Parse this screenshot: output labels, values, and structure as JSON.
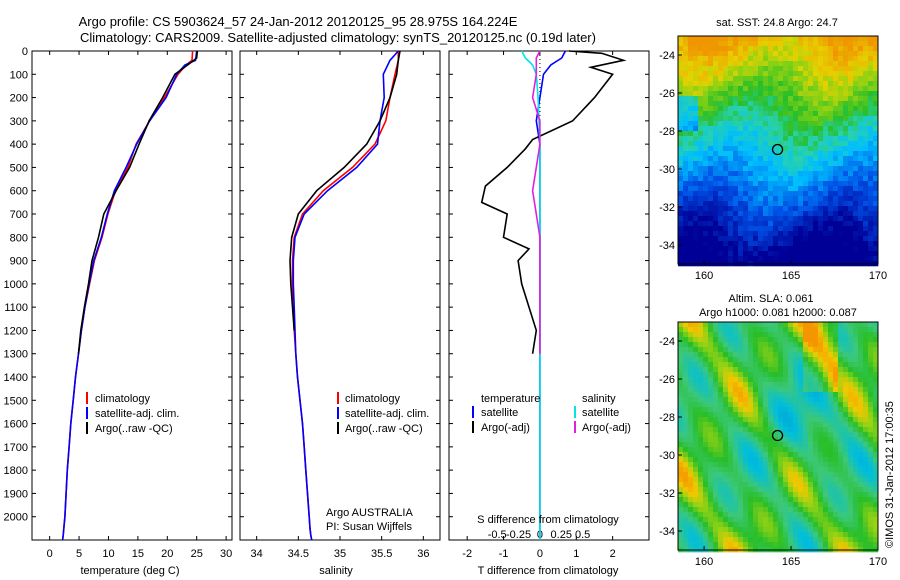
{
  "header": {
    "line1": "Argo profile: CS 5903624_57 24-Jan-2012 20120125_95 28.975S 164.224E",
    "line2": "Climatology: CARS2009. Satellite-adjusted climatology: synTS_20120125.nc (0.19d later)"
  },
  "colors": {
    "climatology": "#ff0000",
    "satellite": "#0000ff",
    "argo": "#000000",
    "satellite_s": "#00e5e5",
    "argo_s": "#e020e0"
  },
  "chart_data": [
    {
      "type": "line",
      "xlabel": "temperature (deg C)",
      "ylabel": "",
      "xlim": [
        -3,
        31
      ],
      "ylim": [
        2100,
        0
      ],
      "x_ticks": [
        0,
        5,
        10,
        15,
        20,
        25,
        30
      ],
      "y_ticks": [
        0,
        100,
        200,
        300,
        400,
        500,
        600,
        700,
        800,
        900,
        1000,
        1100,
        1200,
        1300,
        1400,
        1500,
        1600,
        1700,
        1800,
        1900,
        2000
      ],
      "legend": [
        "climatology",
        "satellite-adj. clim.",
        "Argo(..raw -QC)"
      ],
      "series": [
        {
          "name": "climatology",
          "x": [
            24.3,
            24.2,
            23.2,
            21.8,
            19.5,
            17.0,
            14.7,
            13.3,
            11.2,
            9.9,
            8.9,
            7.6,
            6.8,
            6.0,
            5.4,
            4.9,
            4.4,
            4.0,
            3.6,
            3.3,
            3.0,
            2.8,
            2.6,
            2.4,
            2.3,
            2.2
          ],
          "y": [
            0,
            40,
            60,
            100,
            200,
            300,
            400,
            500,
            600,
            700,
            800,
            900,
            1000,
            1100,
            1200,
            1300,
            1400,
            1500,
            1600,
            1700,
            1800,
            1900,
            2000,
            2050,
            2080,
            2100
          ]
        },
        {
          "name": "satellite-adj. clim.",
          "x": [
            25.0,
            24.8,
            23.0,
            21.6,
            19.8,
            17.0,
            14.8,
            13.0,
            11.0,
            9.8,
            8.8,
            7.5,
            6.7,
            6.0,
            5.4,
            4.9,
            4.4,
            4.0,
            3.6,
            3.3,
            3.0,
            2.8,
            2.6,
            2.4,
            2.3,
            2.2
          ],
          "y": [
            0,
            40,
            60,
            100,
            200,
            300,
            400,
            500,
            600,
            700,
            800,
            900,
            1000,
            1100,
            1200,
            1300,
            1400,
            1500,
            1600,
            1700,
            1800,
            1900,
            2000,
            2050,
            2080,
            2100
          ]
        },
        {
          "name": "Argo(..raw -QC)",
          "x": [
            25.1,
            25.0,
            24.0,
            21.3,
            19.2,
            16.9,
            15.2,
            13.6,
            11.3,
            9.2,
            8.3,
            7.2,
            6.6,
            5.9,
            5.3,
            4.9
          ],
          "y": [
            0,
            30,
            50,
            100,
            200,
            300,
            400,
            500,
            600,
            700,
            800,
            900,
            1000,
            1100,
            1200,
            1300
          ]
        }
      ]
    },
    {
      "type": "line",
      "xlabel": "salinity",
      "ylabel": "",
      "xlim": [
        33.8,
        36.2
      ],
      "ylim": [
        2100,
        0
      ],
      "x_ticks": [
        34,
        34.5,
        35,
        35.5,
        36
      ],
      "legend": [
        "climatology",
        "satellite-adj. clim.",
        "Argo(..raw -QC)"
      ],
      "annotations": [
        "Argo AUSTRALIA",
        "PI: Susan Wijffels"
      ],
      "series": [
        {
          "name": "climatology",
          "x": [
            35.7,
            35.7,
            35.66,
            35.6,
            35.55,
            35.42,
            35.15,
            34.8,
            34.55,
            34.45,
            34.43,
            34.43,
            34.44,
            34.45,
            34.47,
            34.49,
            34.52,
            34.55,
            34.57,
            34.59,
            34.61,
            34.63,
            34.64,
            34.65,
            34.66
          ],
          "y": [
            0,
            40,
            100,
            200,
            300,
            400,
            500,
            600,
            700,
            800,
            900,
            1000,
            1100,
            1200,
            1300,
            1400,
            1500,
            1600,
            1700,
            1800,
            1900,
            2000,
            2050,
            2080,
            2100
          ]
        },
        {
          "name": "satellite-adj. clim.",
          "x": [
            35.7,
            35.6,
            35.52,
            35.53,
            35.48,
            35.45,
            35.2,
            34.85,
            34.57,
            34.46,
            34.44,
            34.44,
            34.45,
            34.46,
            34.47,
            34.49,
            34.52,
            34.55,
            34.57,
            34.59,
            34.61,
            34.63,
            34.64,
            34.65,
            34.66
          ],
          "y": [
            0,
            40,
            100,
            200,
            300,
            400,
            500,
            600,
            700,
            800,
            900,
            1000,
            1100,
            1200,
            1300,
            1400,
            1500,
            1600,
            1700,
            1800,
            1900,
            2000,
            2050,
            2080,
            2100
          ]
        },
        {
          "name": "Argo(..raw -QC)",
          "x": [
            35.72,
            35.7,
            35.68,
            35.6,
            35.48,
            35.32,
            35.05,
            34.72,
            34.5,
            34.42,
            34.4,
            34.41,
            34.43,
            34.45
          ],
          "y": [
            0,
            40,
            100,
            200,
            300,
            400,
            500,
            600,
            700,
            800,
            900,
            1000,
            1100,
            1200
          ]
        }
      ]
    },
    {
      "type": "line",
      "xlabel": "T difference from climatology",
      "xlabel_top": "S difference from climatology",
      "xlim": [
        -2.5,
        3.0
      ],
      "ylim": [
        2100,
        0
      ],
      "x_ticks": [
        -2,
        -1,
        0,
        1,
        2
      ],
      "x_ticks_s": [
        "-0.5",
        "-0.25",
        "0",
        "0.25",
        "0.5"
      ],
      "legend_titles": [
        "temperature",
        "salinity"
      ],
      "legend": [
        "satellite",
        "Argo(-adj)",
        "satellite",
        "Argo(-adj)"
      ],
      "series": [
        {
          "name": "temperature satellite",
          "x": [
            0.7,
            0.6,
            0.3,
            0.1,
            0.0,
            -0.1,
            0.0,
            0.0,
            0.0,
            0.0,
            0.0,
            0.0,
            0.0,
            0.0,
            0.0,
            0.0
          ],
          "y": [
            0,
            30,
            60,
            100,
            200,
            300,
            400,
            600,
            800,
            1000,
            1200,
            1400,
            1600,
            1800,
            2000,
            2100
          ]
        },
        {
          "name": "temperature Argo(-adj)",
          "x": [
            0.8,
            1.7,
            2.3,
            1.4,
            2.0,
            1.5,
            0.9,
            -0.2,
            -0.4,
            -0.9,
            -1.5,
            -1.6,
            -0.9,
            -1.0,
            -0.3,
            -0.6,
            -0.5,
            -0.3,
            -0.1,
            -0.2
          ],
          "y": [
            0,
            10,
            40,
            70,
            100,
            200,
            300,
            380,
            420,
            500,
            580,
            650,
            700,
            800,
            850,
            900,
            1000,
            1100,
            1200,
            1300
          ]
        },
        {
          "name": "salinity satellite",
          "x": [
            -0.5,
            -0.4,
            -0.2,
            -0.1,
            -0.05,
            0.0,
            0.0,
            0.0,
            0.0
          ],
          "y": [
            0,
            30,
            60,
            100,
            200,
            400,
            800,
            1400,
            2100
          ]
        },
        {
          "name": "salinity Argo(-adj)",
          "x": [
            0.0,
            -0.1,
            -0.1,
            -0.2,
            0.0,
            0.0,
            -0.1,
            -0.2,
            -0.1,
            0.0,
            0.0,
            0.0
          ],
          "y": [
            0,
            30,
            100,
            200,
            300,
            400,
            500,
            600,
            700,
            800,
            1000,
            1300
          ]
        }
      ]
    },
    {
      "type": "heatmap",
      "title": "sat. SST: 24.8  Argo: 24.7",
      "xlim": [
        158.5,
        170
      ],
      "ylim": [
        -35,
        -23
      ],
      "x_ticks": [
        160,
        165,
        170
      ],
      "y_ticks": [
        -24,
        -26,
        -28,
        -30,
        -32,
        -34
      ],
      "marker": {
        "lon": 164.224,
        "lat": -28.975
      }
    },
    {
      "type": "heatmap",
      "title": "Altim. SLA: 0.061",
      "subtitle": "Argo h1000: 0.081 h2000: 0.087",
      "xlim": [
        158.5,
        170
      ],
      "ylim": [
        -35,
        -23
      ],
      "x_ticks": [
        160,
        165,
        170
      ],
      "y_ticks": [
        -24,
        -26,
        -28,
        -30,
        -32,
        -34
      ],
      "marker": {
        "lon": 164.224,
        "lat": -28.975
      }
    }
  ],
  "stamp": "©IMOS 31-Jan-2012 17:00:35"
}
